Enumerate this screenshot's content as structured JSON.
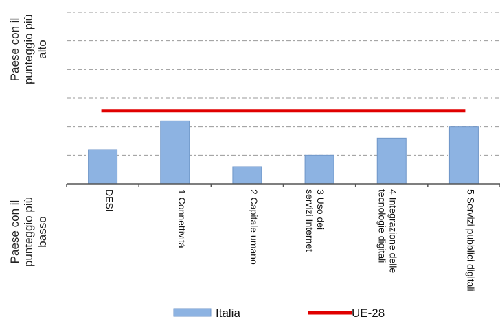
{
  "chart_data": {
    "type": "bar",
    "title": "",
    "y_top_label": [
      "Paese con il",
      "punteggio più",
      "alto"
    ],
    "y_bottom_label": [
      "Paese con il",
      "punteggio più",
      "basso"
    ],
    "categories": [
      [
        "DESI"
      ],
      [
        "1 Connettività"
      ],
      [
        "2 Capitale umano"
      ],
      [
        "3 Uso dei",
        "servizi Internet"
      ],
      [
        "4 Integrazione delle",
        "tecnologie digitali"
      ],
      [
        "5 Servizi pubblici digitali"
      ]
    ],
    "ylim": [
      0,
      6
    ],
    "grid": true,
    "series": [
      {
        "name": "Italia",
        "type": "bar",
        "values": [
          1.2,
          2.2,
          0.6,
          1.0,
          1.6,
          2.0
        ],
        "color": "#8db3e2"
      },
      {
        "name": "UE-28",
        "type": "line",
        "value": 2.55,
        "color": "#e00000"
      }
    ],
    "legend_position": "bottom"
  }
}
